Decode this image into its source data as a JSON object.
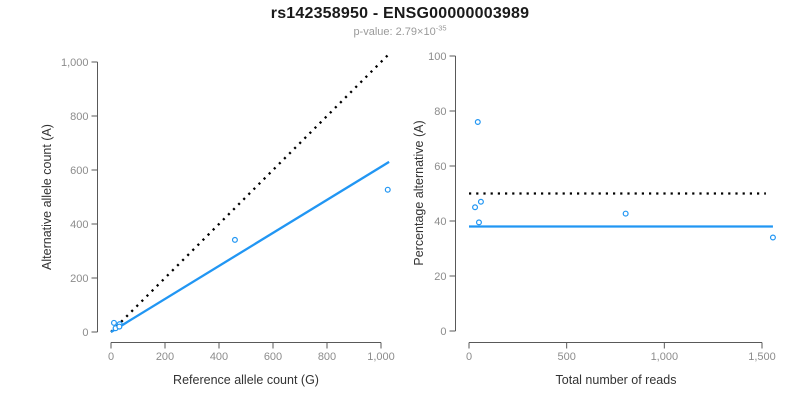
{
  "header": {
    "title": "rs142358950 - ENSG00000003989",
    "pvalue_text": "p-value: 2.79×10",
    "pvalue_exponent": "-35"
  },
  "colors": {
    "accent_blue": "#2196F3",
    "reference_black": "#000000",
    "axis_line_gray": "#595959",
    "tick_label_gray": "#8c8c8c",
    "axis_title_gray": "#333333",
    "background": "#ffffff"
  },
  "chart_data": [
    {
      "type": "scatter",
      "name": "allele-counts-scatter",
      "title": "",
      "xlabel": "Reference allele count (G)",
      "ylabel": "Alternative allele count (A)",
      "xlim": [
        0,
        1000
      ],
      "ylim": [
        0,
        1000
      ],
      "xtick_values": [
        0,
        200,
        400,
        600,
        800,
        1000
      ],
      "xtick_labels": [
        "0",
        "200",
        "400",
        "600",
        "800",
        "1,000"
      ],
      "ytick_values": [
        0,
        200,
        400,
        600,
        800,
        1000
      ],
      "ytick_labels": [
        "0",
        "200",
        "400",
        "600",
        "800",
        "1,000"
      ],
      "grid": false,
      "legend": false,
      "points": [
        [
          11,
          34
        ],
        [
          17,
          14
        ],
        [
          32,
          29
        ],
        [
          31,
          20
        ],
        [
          459,
          341
        ],
        [
          1025,
          527
        ]
      ],
      "lines": [
        {
          "name": "identity-line",
          "style": "dotted",
          "color": "#000000",
          "x1": 0,
          "y1": 0,
          "x2": 1026,
          "y2": 1026
        },
        {
          "name": "fit-line",
          "style": "solid",
          "color": "#2196F3",
          "x1": 0,
          "y1": 0,
          "x2": 1030,
          "y2": 630
        }
      ]
    },
    {
      "type": "scatter",
      "name": "percentage-vs-reads-scatter",
      "title": "",
      "xlabel": "Total number of reads",
      "ylabel": "Percentage alternative (A)",
      "xlim": [
        0,
        1500
      ],
      "ylim": [
        0,
        100
      ],
      "xtick_values": [
        0,
        500,
        1000,
        1500
      ],
      "xtick_labels": [
        "0",
        "500",
        "1,000",
        "1,500"
      ],
      "ytick_values": [
        0,
        20,
        40,
        60,
        80,
        100
      ],
      "ytick_labels": [
        "0",
        "20",
        "40",
        "60",
        "80",
        "100"
      ],
      "grid": false,
      "legend": false,
      "points": [
        [
          45,
          76
        ],
        [
          31,
          45
        ],
        [
          61,
          47
        ],
        [
          51,
          39.5
        ],
        [
          802,
          42.7
        ],
        [
          1556,
          34
        ]
      ],
      "lines": [
        {
          "name": "expected-50pct-line",
          "style": "dotted",
          "color": "#000000",
          "x1": 0,
          "y1": 50,
          "x2": 1520,
          "y2": 50
        },
        {
          "name": "fit-line",
          "style": "solid",
          "color": "#2196F3",
          "x1": 0,
          "y1": 38,
          "x2": 1556,
          "y2": 38
        }
      ]
    }
  ]
}
